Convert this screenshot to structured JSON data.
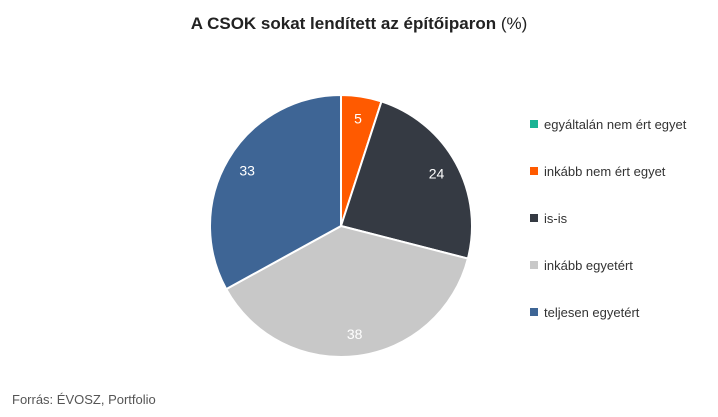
{
  "chart_data": {
    "type": "pie",
    "title": "A CSOK sokat lendített az építőiparon",
    "title_unit": "(%)",
    "slices": [
      {
        "label": "egyáltalán nem ért egyet",
        "value": 0,
        "color": "#1ab394"
      },
      {
        "label": "inkább nem ért egyet",
        "value": 5,
        "color": "#ff5a00"
      },
      {
        "label": "is-is",
        "value": 24,
        "color": "#353a43"
      },
      {
        "label": "inkább egyetért",
        "value": 38,
        "color": "#c8c8c8"
      },
      {
        "label": "teljesen egyetért",
        "value": 33,
        "color": "#3e6595"
      }
    ],
    "legend_position": "right",
    "source": "Forrás: ÉVOSZ, Portfolio"
  }
}
